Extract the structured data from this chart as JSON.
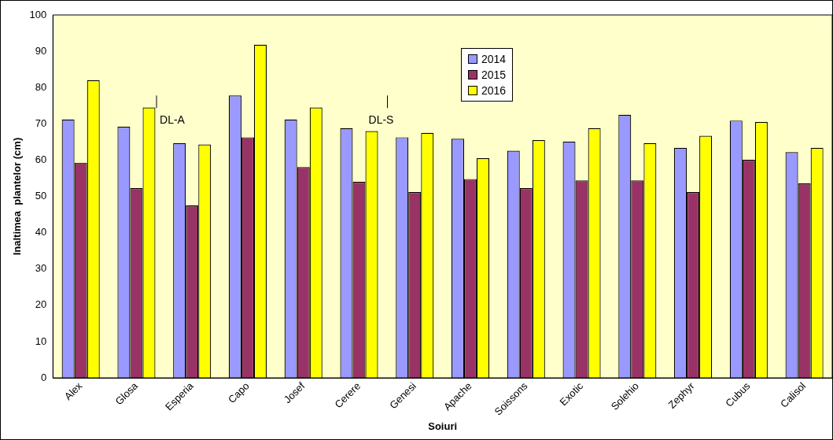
{
  "chart_data": {
    "type": "bar",
    "xlabel": "Soiuri",
    "ylabel": "Inaltimea  plantelor (cm)",
    "categories": [
      "Alex",
      "Glosa",
      "Esperia",
      "Capo",
      "Josef",
      "Cerere",
      "Genesi",
      "Apache",
      "Soissons",
      "Exotic",
      "Solehio",
      "Zephyr",
      "Cubus",
      "Calisol"
    ],
    "series": [
      {
        "name": "2014",
        "color": "#9999ff",
        "values": [
          71.2,
          69.2,
          64.7,
          77.8,
          71.2,
          68.8,
          66.3,
          65.9,
          62.6,
          65.1,
          72.5,
          63.4,
          70.9,
          62.2
        ]
      },
      {
        "name": "2015",
        "color": "#993366",
        "values": [
          59.3,
          52.3,
          47.5,
          66.3,
          58.1,
          54.0,
          51.2,
          54.8,
          52.3,
          54.4,
          54.4,
          51.2,
          60.1,
          53.6
        ]
      },
      {
        "name": "2016",
        "color": "#ffff00",
        "values": [
          82.0,
          74.5,
          64.3,
          91.8,
          74.5,
          68.0,
          67.5,
          60.5,
          65.5,
          68.8,
          64.7,
          66.7,
          70.5,
          63.4
        ]
      }
    ],
    "ylim": [
      0,
      100
    ],
    "yticks": [
      0,
      10,
      20,
      30,
      40,
      50,
      60,
      70,
      80,
      90,
      100
    ],
    "grid": false,
    "legend": "top",
    "annotations": [
      "DL-A",
      "DL-S"
    ]
  }
}
